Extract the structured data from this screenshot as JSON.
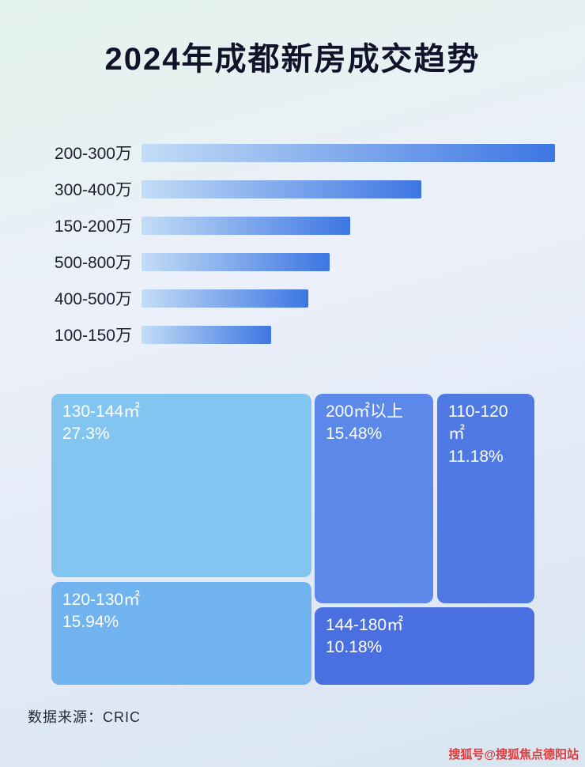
{
  "title": "2024年成都新房成交趋势",
  "colors": {
    "title": "#12122b",
    "bar_gradient_start": "#c3ddf6",
    "bar_gradient_end": "#3d76e3",
    "watermark": "#e23b3b"
  },
  "chart_data": [
    {
      "type": "bar",
      "orientation": "horizontal",
      "title": "2024年成都新房成交趋势",
      "categories": [
        "200-300万",
        "300-400万",
        "150-200万",
        "500-800万",
        "400-500万",
        "100-150万"
      ],
      "values": [
        99,
        67,
        50,
        45,
        40,
        31
      ],
      "value_note": "relative bar length percent of track (no numeric axis shown in image)",
      "xlabel": "",
      "ylabel": "",
      "grid": false,
      "legend": false
    },
    {
      "type": "treemap",
      "items": [
        {
          "label": "130-144㎡",
          "value": 27.3,
          "display": "27.3%",
          "color": "#83c5f1"
        },
        {
          "label": "200㎡以上",
          "value": 15.48,
          "display": "15.48%",
          "color": "#5b88e9"
        },
        {
          "label": "110-120㎡",
          "value": 11.18,
          "display": "11.18%",
          "color": "#4e79e3"
        },
        {
          "label": "120-130㎡",
          "value": 15.94,
          "display": "15.94%",
          "color": "#70b3ee"
        },
        {
          "label": "144-180㎡",
          "value": 10.18,
          "display": "10.18%",
          "color": "#4a6fe0"
        }
      ]
    }
  ],
  "footer": {
    "source_label": "数据来源：CRIC"
  },
  "watermark": {
    "text": "搜狐号@搜狐焦点德阳站"
  }
}
